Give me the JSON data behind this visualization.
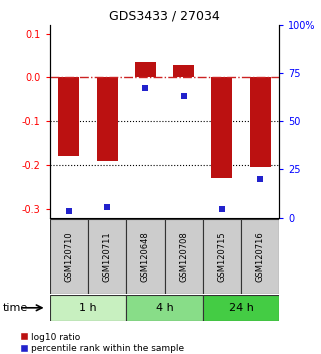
{
  "title": "GDS3433 / 27034",
  "samples": [
    "GSM120710",
    "GSM120711",
    "GSM120648",
    "GSM120708",
    "GSM120715",
    "GSM120716"
  ],
  "log10_ratio": [
    -0.18,
    -0.19,
    0.035,
    0.028,
    -0.23,
    -0.205
  ],
  "percentile_rank": [
    3.5,
    5.5,
    67,
    63,
    4.5,
    20
  ],
  "groups": [
    {
      "label": "1 h",
      "indices": [
        0,
        1
      ],
      "color": "#c8f0c0"
    },
    {
      "label": "4 h",
      "indices": [
        2,
        3
      ],
      "color": "#88dd88"
    },
    {
      "label": "24 h",
      "indices": [
        4,
        5
      ],
      "color": "#44cc44"
    }
  ],
  "bar_color": "#bb1111",
  "dot_color": "#2222cc",
  "ylim_left": [
    -0.32,
    0.12
  ],
  "ylim_right": [
    0,
    100
  ],
  "yticks_left": [
    0.1,
    0.0,
    -0.1,
    -0.2,
    -0.3
  ],
  "yticks_right": [
    100,
    75,
    50,
    25,
    0
  ],
  "hline_zero_color": "#cc2222",
  "hline_dotted_vals": [
    -0.1,
    -0.2
  ],
  "bar_width": 0.55,
  "legend_red_label": "log10 ratio",
  "legend_blue_label": "percentile rank within the sample",
  "time_label": "time",
  "box_color": "#cccccc",
  "box_edgecolor": "#333333"
}
